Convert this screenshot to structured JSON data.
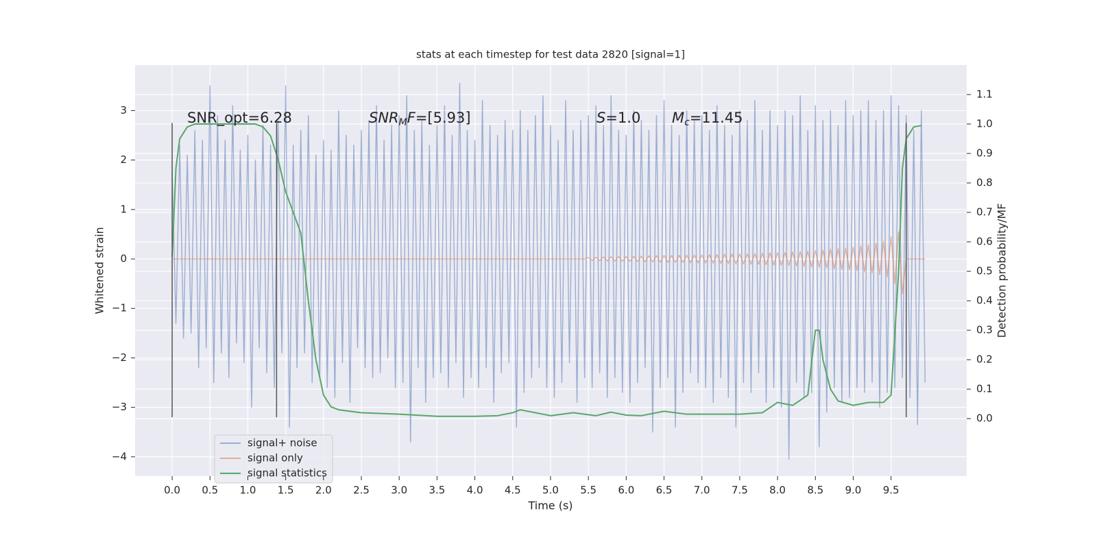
{
  "chart_data": {
    "type": "line",
    "title": "stats at each timestep for test data 2820 [signal=1]",
    "xlabel": "Time (s)",
    "ylabel": "Whitened strain",
    "y2label": "Detection probability/MF",
    "xlim": [
      -0.49,
      10.5
    ],
    "ylim": [
      -4.39,
      3.92
    ],
    "y2lim": [
      -0.195,
      1.2
    ],
    "xticks": [
      {
        "value": 0,
        "label": "0.0"
      },
      0.5,
      {
        "value": 1,
        "label": "1.0"
      },
      1.5,
      {
        "value": 2,
        "label": "2.0"
      },
      2.5,
      {
        "value": 3,
        "label": "3.0"
      },
      3.5,
      {
        "value": 4,
        "label": "4.0"
      },
      4.5,
      {
        "value": 5,
        "label": "5.0"
      },
      5.5,
      {
        "value": 6,
        "label": "6.0"
      },
      6.5,
      {
        "value": 7,
        "label": "7.0"
      },
      7.5,
      {
        "value": 8,
        "label": "8.0"
      },
      8.5,
      {
        "value": 9,
        "label": "9.0"
      },
      9.5
    ],
    "yticks": [
      {
        "value": -4,
        "label": "−4"
      },
      {
        "value": -3,
        "label": "−3"
      },
      {
        "value": -2,
        "label": "−2"
      },
      {
        "value": -1,
        "label": "−1"
      },
      0,
      1,
      2,
      3
    ],
    "y2ticks": [
      {
        "value": 0,
        "label": "0.0"
      },
      0.1,
      0.2,
      0.3,
      0.4,
      0.5,
      0.6,
      0.7,
      0.8,
      0.9,
      {
        "value": 1,
        "label": "1.0"
      },
      1.1
    ],
    "grid": true,
    "legend": "lower left",
    "annotations": [
      {
        "parts": [
          {
            "text": "SNR_opt=6.28"
          }
        ]
      },
      {
        "parts": [
          {
            "text": "SNR",
            "italic": true
          },
          {
            "text": "M",
            "italic": true,
            "sub": true
          },
          {
            "text": "F",
            "italic": true
          },
          {
            "text": "=[5.93]"
          }
        ]
      },
      {
        "parts": [
          {
            "text": "S",
            "italic": true
          },
          {
            "text": "=1.0"
          }
        ]
      },
      {
        "parts": [
          {
            "text": "M",
            "italic": true
          },
          {
            "text": "c",
            "italic": true,
            "sub": true
          },
          {
            "text": "=11.45"
          }
        ]
      }
    ],
    "vlines": {
      "x": [
        0,
        1.38,
        9.7
      ],
      "ymin": -3.2,
      "ymax": 2.75,
      "color": "#555555"
    },
    "series": [
      {
        "name": "signal+ noise",
        "color": "#4c72b0",
        "opacity": 0.5,
        "x": [
          0,
          0.05,
          0.1,
          0.15,
          0.2,
          0.25,
          0.3,
          0.35,
          0.4,
          0.45,
          0.5,
          0.55,
          0.6,
          0.65,
          0.7,
          0.75,
          0.8,
          0.85,
          0.9,
          0.95,
          1,
          1.05,
          1.1,
          1.15,
          1.2,
          1.25,
          1.3,
          1.35,
          1.4,
          1.45,
          1.5,
          1.55,
          1.6,
          1.65,
          1.7,
          1.75,
          1.8,
          1.85,
          1.9,
          1.95,
          2,
          2.05,
          2.1,
          2.15,
          2.2,
          2.25,
          2.3,
          2.35,
          2.4,
          2.45,
          2.5,
          2.55,
          2.6,
          2.65,
          2.7,
          2.75,
          2.8,
          2.85,
          2.9,
          2.95,
          3,
          3.05,
          3.1,
          3.15,
          3.2,
          3.25,
          3.3,
          3.35,
          3.4,
          3.45,
          3.5,
          3.55,
          3.6,
          3.65,
          3.7,
          3.75,
          3.8,
          3.85,
          3.9,
          3.95,
          4,
          4.05,
          4.1,
          4.15,
          4.2,
          4.25,
          4.3,
          4.35,
          4.4,
          4.45,
          4.5,
          4.55,
          4.6,
          4.65,
          4.7,
          4.75,
          4.8,
          4.85,
          4.9,
          4.95,
          5,
          5.05,
          5.1,
          5.15,
          5.2,
          5.25,
          5.3,
          5.35,
          5.4,
          5.45,
          5.5,
          5.55,
          5.6,
          5.65,
          5.7,
          5.75,
          5.8,
          5.85,
          5.9,
          5.95,
          6,
          6.05,
          6.1,
          6.15,
          6.2,
          6.25,
          6.3,
          6.35,
          6.4,
          6.45,
          6.5,
          6.55,
          6.6,
          6.65,
          6.7,
          6.75,
          6.8,
          6.85,
          6.9,
          6.95,
          7,
          7.05,
          7.1,
          7.15,
          7.2,
          7.25,
          7.3,
          7.35,
          7.4,
          7.45,
          7.5,
          7.55,
          7.6,
          7.65,
          7.7,
          7.75,
          7.8,
          7.85,
          7.9,
          7.95,
          8,
          8.05,
          8.1,
          8.15,
          8.2,
          8.25,
          8.3,
          8.35,
          8.4,
          8.45,
          8.5,
          8.55,
          8.6,
          8.65,
          8.7,
          8.75,
          8.8,
          8.85,
          8.9,
          8.95,
          9,
          9.05,
          9.1,
          9.15,
          9.2,
          9.25,
          9.3,
          9.35,
          9.4,
          9.45,
          9.5,
          9.55,
          9.6,
          9.65,
          9.7,
          9.75,
          9.8,
          9.85,
          9.9,
          9.95
        ],
        "values": [
          1.8,
          -1.3,
          2.3,
          -1.6,
          2.1,
          -1.5,
          2.6,
          -2.2,
          2.4,
          -1.8,
          3.5,
          -2.5,
          2.9,
          -1.9,
          2.4,
          -2.4,
          3.1,
          -1.7,
          2.2,
          -2.1,
          2.5,
          -3.0,
          2.0,
          -1.8,
          2.7,
          -2.3,
          2.3,
          -2.6,
          2.8,
          -1.9,
          3.5,
          -3.4,
          2.3,
          -2.2,
          2.6,
          -1.9,
          2.9,
          -2.5,
          2.1,
          -2.4,
          2.4,
          -2.6,
          2.2,
          -2.8,
          3.0,
          -2.1,
          2.5,
          -2.9,
          2.3,
          -1.8,
          2.6,
          -2.2,
          2.8,
          -2.4,
          3.1,
          -2.3,
          2.4,
          -2.0,
          2.7,
          -2.6,
          2.9,
          -2.5,
          3.3,
          -3.7,
          2.6,
          -2.2,
          2.8,
          -2.9,
          2.3,
          -2.4,
          2.7,
          -2.3,
          3.1,
          -2.6,
          2.5,
          -2.1,
          3.55,
          -2.8,
          2.6,
          -2.4,
          2.4,
          -2.6,
          3.2,
          -2.2,
          2.7,
          -2.9,
          2.5,
          -2.3,
          2.8,
          -2.1,
          2.6,
          -3.4,
          3.0,
          -2.7,
          2.6,
          -2.4,
          2.9,
          -2.2,
          3.3,
          -2.6,
          2.7,
          -2.8,
          2.4,
          -2.5,
          3.2,
          -2.1,
          2.6,
          -2.9,
          2.8,
          -2.4,
          2.9,
          -2.6,
          3.1,
          -2.3,
          2.7,
          -2.8,
          3.3,
          -2.4,
          2.6,
          -2.7,
          2.5,
          -2.9,
          3.0,
          -2.5,
          2.8,
          -2.2,
          2.6,
          -3.5,
          2.9,
          -2.6,
          3.2,
          -2.4,
          2.7,
          -3.4,
          2.5,
          -2.7,
          3.0,
          -2.3,
          2.8,
          -2.5,
          2.9,
          -2.6,
          2.6,
          -2.9,
          3.1,
          -2.4,
          2.7,
          -2.8,
          2.5,
          -3.4,
          3.0,
          -2.5,
          2.8,
          -2.7,
          3.2,
          -2.3,
          2.6,
          -2.9,
          3.0,
          -2.6,
          2.7,
          -3.0,
          3.0,
          -4.05,
          2.9,
          -2.5,
          3.3,
          -2.8,
          2.6,
          -2.7,
          3.1,
          -3.8,
          2.8,
          -3.1,
          3.0,
          -2.6,
          2.7,
          -2.9,
          3.2,
          -2.8,
          2.9,
          -2.6,
          3.0,
          -2.7,
          3.2,
          -2.5,
          2.8,
          -3.0,
          3.0,
          -2.7,
          3.3,
          -2.6,
          3.1,
          -2.4,
          2.9,
          -2.8,
          2.6,
          -3.35,
          3.0,
          -2.5
        ]
      },
      {
        "name": "signal only",
        "color": "#dd8452",
        "opacity": 0.6,
        "x": [
          0,
          0.05,
          0.1,
          0.15,
          0.2,
          0.25,
          0.3,
          0.35,
          0.4,
          0.45,
          0.5,
          0.55,
          0.6,
          0.65,
          0.7,
          0.75,
          0.8,
          0.85,
          0.9,
          0.95,
          1,
          1.05,
          1.1,
          1.15,
          1.2,
          1.25,
          1.3,
          1.35,
          1.4,
          1.45,
          1.5,
          1.55,
          1.6,
          1.65,
          1.7,
          1.75,
          1.8,
          1.85,
          1.9,
          1.95,
          2,
          2.05,
          2.1,
          2.15,
          2.2,
          2.25,
          2.3,
          2.35,
          2.4,
          2.45,
          2.5,
          2.55,
          2.6,
          2.65,
          2.7,
          2.75,
          2.8,
          2.85,
          2.9,
          2.95,
          3,
          3.05,
          3.1,
          3.15,
          3.2,
          3.25,
          3.3,
          3.35,
          3.4,
          3.45,
          3.5,
          3.55,
          3.6,
          3.65,
          3.7,
          3.75,
          3.8,
          3.85,
          3.9,
          3.95,
          4,
          4.05,
          4.1,
          4.15,
          4.2,
          4.25,
          4.3,
          4.35,
          4.4,
          4.45,
          4.5,
          4.55,
          4.6,
          4.65,
          4.7,
          4.75,
          4.8,
          4.85,
          4.9,
          4.95,
          5,
          5.05,
          5.1,
          5.15,
          5.2,
          5.25,
          5.3,
          5.35,
          5.4,
          5.45,
          5.5,
          5.55,
          5.6,
          5.65,
          5.7,
          5.75,
          5.8,
          5.85,
          5.9,
          5.95,
          6,
          6.05,
          6.1,
          6.15,
          6.2,
          6.25,
          6.3,
          6.35,
          6.4,
          6.45,
          6.5,
          6.55,
          6.6,
          6.65,
          6.7,
          6.75,
          6.8,
          6.85,
          6.9,
          6.95,
          7,
          7.05,
          7.1,
          7.15,
          7.2,
          7.25,
          7.3,
          7.35,
          7.4,
          7.45,
          7.5,
          7.55,
          7.6,
          7.65,
          7.7,
          7.75,
          7.8,
          7.85,
          7.9,
          7.95,
          8,
          8.05,
          8.1,
          8.15,
          8.2,
          8.25,
          8.3,
          8.35,
          8.4,
          8.45,
          8.5,
          8.55,
          8.6,
          8.65,
          8.7,
          8.75,
          8.8,
          8.85,
          8.9,
          8.95,
          9,
          9.05,
          9.1,
          9.15,
          9.2,
          9.25,
          9.3,
          9.35,
          9.4,
          9.45,
          9.5,
          9.55,
          9.6,
          9.65,
          9.7,
          9.75,
          9.8,
          9.85,
          9.9,
          9.95
        ],
        "values": [
          0,
          0,
          0,
          0,
          0,
          0,
          0,
          0,
          0,
          0,
          0,
          0,
          0,
          0,
          0,
          0,
          0,
          0,
          0,
          0,
          0,
          0,
          0,
          0,
          0,
          0,
          0,
          0,
          0,
          0,
          0,
          0,
          0,
          0,
          0,
          0,
          0,
          0,
          0,
          0,
          0,
          0,
          0,
          0,
          0,
          0,
          0,
          0,
          0,
          0,
          0,
          0,
          0,
          0,
          0,
          0,
          0,
          0,
          0,
          0,
          0,
          0,
          0,
          0,
          0,
          0,
          0,
          0,
          0,
          0,
          0,
          0,
          0,
          0,
          0,
          0,
          0,
          0,
          0,
          0,
          0,
          0,
          0,
          0,
          0,
          0,
          0,
          0,
          0,
          0,
          0,
          0,
          0,
          0,
          0,
          0,
          0,
          0,
          0,
          0,
          0,
          0,
          0,
          0,
          0,
          0,
          0,
          0,
          0,
          0,
          0.03,
          -0.03,
          0.035,
          -0.035,
          0.04,
          -0.04,
          0.045,
          -0.045,
          0.05,
          -0.05,
          0.05,
          -0.05,
          0.055,
          -0.055,
          0.06,
          -0.06,
          0.065,
          -0.065,
          0.07,
          -0.07,
          0.07,
          -0.07,
          0.072,
          -0.072,
          0.075,
          -0.075,
          0.078,
          -0.078,
          0.08,
          -0.08,
          0.08,
          -0.08,
          0.085,
          -0.085,
          0.09,
          -0.09,
          0.095,
          -0.095,
          0.1,
          -0.1,
          0.1,
          -0.1,
          0.105,
          -0.105,
          0.11,
          -0.11,
          0.12,
          -0.12,
          0.125,
          -0.125,
          0.13,
          -0.13,
          0.135,
          -0.135,
          0.14,
          -0.14,
          0.15,
          -0.15,
          0.16,
          -0.16,
          0.17,
          -0.17,
          0.18,
          -0.18,
          0.2,
          -0.2,
          0.21,
          -0.21,
          0.22,
          -0.22,
          0.24,
          -0.24,
          0.26,
          -0.26,
          0.28,
          -0.28,
          0.32,
          -0.32,
          0.36,
          -0.36,
          0.45,
          -0.5,
          0.55,
          -0.7,
          0,
          0,
          0,
          0,
          0,
          0
        ]
      },
      {
        "name": "signal statistics",
        "color": "#55a868",
        "opacity": 1,
        "axis": "y2",
        "x": [
          0,
          0.05,
          0.1,
          0.2,
          0.3,
          0.5,
          0.7,
          0.9,
          1.1,
          1.2,
          1.3,
          1.4,
          1.5,
          1.6,
          1.7,
          1.8,
          1.9,
          2.0,
          2.1,
          2.2,
          2.5,
          3.0,
          3.5,
          4.0,
          4.3,
          4.5,
          4.6,
          4.8,
          5.0,
          5.3,
          5.6,
          5.8,
          6.0,
          6.2,
          6.5,
          6.8,
          7.2,
          7.5,
          7.8,
          8.0,
          8.2,
          8.4,
          8.5,
          8.55,
          8.6,
          8.7,
          8.8,
          9.0,
          9.2,
          9.4,
          9.5,
          9.6,
          9.65,
          9.7,
          9.8,
          9.9
        ],
        "values": [
          0.55,
          0.85,
          0.95,
          0.99,
          1.0,
          1.0,
          1.0,
          1.0,
          1.0,
          0.99,
          0.96,
          0.88,
          0.77,
          0.7,
          0.63,
          0.4,
          0.2,
          0.08,
          0.04,
          0.03,
          0.02,
          0.015,
          0.008,
          0.008,
          0.01,
          0.02,
          0.03,
          0.02,
          0.01,
          0.02,
          0.01,
          0.022,
          0.012,
          0.01,
          0.025,
          0.015,
          0.015,
          0.015,
          0.02,
          0.055,
          0.045,
          0.08,
          0.3,
          0.3,
          0.2,
          0.1,
          0.06,
          0.045,
          0.055,
          0.055,
          0.08,
          0.5,
          0.85,
          0.95,
          0.99,
          0.995
        ]
      }
    ]
  }
}
